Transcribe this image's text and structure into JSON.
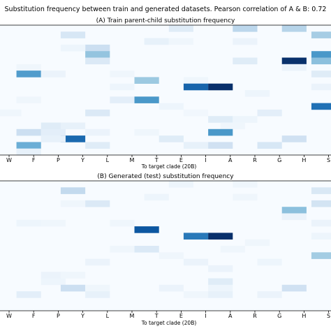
{
  "figure": {
    "suptitle": "Substitution frequency between train and generated datasets. Pearson correlation of A & B: 0.72"
  },
  "chart_data": [
    {
      "type": "heatmap",
      "title": "(A) Train parent-child substitution frequency",
      "xlabel": "To target clade (20B)",
      "x_ticks": [
        "W",
        "F",
        "P",
        "Y",
        "L",
        "M",
        "T",
        "E",
        "I",
        "A",
        "R",
        "G",
        "H",
        "S"
      ],
      "n_rows": 20,
      "n_cols": 13.3,
      "colormap": "Blues",
      "value_range": [
        0,
        1
      ],
      "cells": [
        {
          "r": 0,
          "c": 7,
          "v": 0.12
        },
        {
          "r": 0,
          "c": 9.6,
          "v": 0.28
        },
        {
          "r": 0,
          "c": 11.6,
          "v": 0.3
        },
        {
          "r": 1,
          "c": 2.6,
          "v": 0.16
        },
        {
          "r": 1,
          "c": 12.8,
          "v": 0.35
        },
        {
          "r": 2,
          "c": 6,
          "v": 0.08
        },
        {
          "r": 2,
          "c": 9.6,
          "v": 0.06
        },
        {
          "r": 2,
          "c": 7,
          "v": 0.04
        },
        {
          "r": 3,
          "c": 3.6,
          "v": 0.22
        },
        {
          "r": 3,
          "c": 2.6,
          "v": 0.05
        },
        {
          "r": 4,
          "c": 3.6,
          "v": 0.4
        },
        {
          "r": 4,
          "c": 12.8,
          "v": 0.6
        },
        {
          "r": 5,
          "c": 3.6,
          "v": 0.14
        },
        {
          "r": 5,
          "c": 9.6,
          "v": 0.12
        },
        {
          "r": 5,
          "c": 11.6,
          "v": 1.0
        },
        {
          "r": 5,
          "c": 12.8,
          "v": 0.42
        },
        {
          "r": 6,
          "c": 11.6,
          "v": 0.06
        },
        {
          "r": 6,
          "c": 0.8,
          "v": 0.04
        },
        {
          "r": 7,
          "c": 0.8,
          "v": 0.58
        },
        {
          "r": 7,
          "c": 1.8,
          "v": 0.06
        },
        {
          "r": 7,
          "c": 4.6,
          "v": 0.04
        },
        {
          "r": 7,
          "c": 12.8,
          "v": 0.12
        },
        {
          "r": 8,
          "c": 5.6,
          "v": 0.38
        },
        {
          "r": 8,
          "c": 7.6,
          "v": 0.04
        },
        {
          "r": 9,
          "c": 7.6,
          "v": 0.8
        },
        {
          "r": 9,
          "c": 8.6,
          "v": 1.0
        },
        {
          "r": 9,
          "c": 4.6,
          "v": 0.05
        },
        {
          "r": 9,
          "c": 12.8,
          "v": 0.06
        },
        {
          "r": 10,
          "c": 10.1,
          "v": 0.05
        },
        {
          "r": 11,
          "c": 5.6,
          "v": 0.6
        },
        {
          "r": 11,
          "c": 4.6,
          "v": 0.1
        },
        {
          "r": 11,
          "c": 0.8,
          "v": 0.04
        },
        {
          "r": 12,
          "c": 6.6,
          "v": 0.05
        },
        {
          "r": 12,
          "c": 12.8,
          "v": 0.75
        },
        {
          "r": 13,
          "c": 3.6,
          "v": 0.14
        },
        {
          "r": 13,
          "c": 0,
          "v": 0.04
        },
        {
          "r": 13,
          "c": 10.6,
          "v": 0.1
        },
        {
          "r": 13,
          "c": 7.6,
          "v": 0.03
        },
        {
          "r": 14,
          "c": 8.6,
          "v": 0.12
        },
        {
          "r": 14,
          "c": 9.6,
          "v": 0.05
        },
        {
          "r": 15,
          "c": 1.8,
          "v": 0.12
        },
        {
          "r": 15,
          "c": 2.6,
          "v": 0.08
        },
        {
          "r": 15,
          "c": 9.1,
          "v": 0.04
        },
        {
          "r": 16,
          "c": 0.8,
          "v": 0.22
        },
        {
          "r": 16,
          "c": 1.8,
          "v": 0.1
        },
        {
          "r": 16,
          "c": 3.6,
          "v": 0.06
        },
        {
          "r": 16,
          "c": 5.6,
          "v": 0.04
        },
        {
          "r": 16,
          "c": 8.6,
          "v": 0.6
        },
        {
          "r": 17,
          "c": 2.6,
          "v": 0.78
        },
        {
          "r": 17,
          "c": 1.8,
          "v": 0.08
        },
        {
          "r": 17,
          "c": 6.6,
          "v": 0.12
        },
        {
          "r": 17,
          "c": 11.6,
          "v": 0.2
        },
        {
          "r": 18,
          "c": 0.8,
          "v": 0.5
        },
        {
          "r": 18,
          "c": 3.6,
          "v": 0.12
        },
        {
          "r": 18,
          "c": 7.6,
          "v": 0.08
        },
        {
          "r": 18,
          "c": 8.6,
          "v": 0.2
        },
        {
          "r": 18,
          "c": 10.6,
          "v": 0.16
        },
        {
          "r": 19,
          "c": 0.8,
          "v": 0.08
        }
      ]
    },
    {
      "type": "heatmap",
      "title": "(B) Generated (test) substitution frequency",
      "xlabel": "To target clade (20B)",
      "x_ticks": [
        "W",
        "F",
        "P",
        "Y",
        "L",
        "M",
        "T",
        "E",
        "I",
        "A",
        "R",
        "G",
        "H",
        "S"
      ],
      "n_rows": 20,
      "n_cols": 13.3,
      "colormap": "Blues",
      "value_range": [
        0,
        1
      ],
      "cells": [
        {
          "r": 0,
          "c": 7,
          "v": 0.05
        },
        {
          "r": 0,
          "c": 9.6,
          "v": 0.04
        },
        {
          "r": 1,
          "c": 2.6,
          "v": 0.26
        },
        {
          "r": 1,
          "c": 12.8,
          "v": 0.15
        },
        {
          "r": 2,
          "c": 6,
          "v": 0.05
        },
        {
          "r": 2,
          "c": 9.6,
          "v": 0.04
        },
        {
          "r": 3,
          "c": 2.6,
          "v": 0.04
        },
        {
          "r": 3,
          "c": 3.6,
          "v": 0.14
        },
        {
          "r": 3,
          "c": 12.8,
          "v": 0.18
        },
        {
          "r": 4,
          "c": 11.6,
          "v": 0.42
        },
        {
          "r": 5,
          "c": 11.6,
          "v": 0.06
        },
        {
          "r": 6,
          "c": 0.8,
          "v": 0.05
        },
        {
          "r": 6,
          "c": 1.8,
          "v": 0.04
        },
        {
          "r": 6,
          "c": 4.6,
          "v": 0.04
        },
        {
          "r": 6,
          "c": 12.8,
          "v": 0.06
        },
        {
          "r": 7,
          "c": 5.6,
          "v": 0.85
        },
        {
          "r": 8,
          "c": 7.6,
          "v": 0.72
        },
        {
          "r": 8,
          "c": 8.6,
          "v": 1.0
        },
        {
          "r": 8,
          "c": 12.8,
          "v": 0.05
        },
        {
          "r": 9,
          "c": 10.1,
          "v": 0.04
        },
        {
          "r": 10,
          "c": 5.6,
          "v": 0.14
        },
        {
          "r": 10,
          "c": 4.6,
          "v": 0.04
        },
        {
          "r": 10,
          "c": 9.1,
          "v": 0.04
        },
        {
          "r": 11,
          "c": 6.6,
          "v": 0.04
        },
        {
          "r": 11,
          "c": 12.8,
          "v": 0.36
        },
        {
          "r": 12,
          "c": 3.6,
          "v": 0.06
        },
        {
          "r": 12,
          "c": 7.6,
          "v": 0.06
        },
        {
          "r": 12,
          "c": 10.6,
          "v": 0.05
        },
        {
          "r": 13,
          "c": 8.6,
          "v": 0.06
        },
        {
          "r": 14,
          "c": 1.8,
          "v": 0.06
        },
        {
          "r": 14,
          "c": 2.6,
          "v": 0.04
        },
        {
          "r": 15,
          "c": 1.8,
          "v": 0.05
        },
        {
          "r": 15,
          "c": 8.6,
          "v": 0.12
        },
        {
          "r": 16,
          "c": 2.6,
          "v": 0.22
        },
        {
          "r": 16,
          "c": 3.6,
          "v": 0.04
        },
        {
          "r": 16,
          "c": 6.6,
          "v": 0.06
        },
        {
          "r": 16,
          "c": 8.6,
          "v": 0.05
        },
        {
          "r": 16,
          "c": 11.6,
          "v": 0.2
        },
        {
          "r": 17,
          "c": 0.8,
          "v": 0.1
        },
        {
          "r": 17,
          "c": 3.6,
          "v": 0.08
        },
        {
          "r": 17,
          "c": 7.6,
          "v": 0.04
        },
        {
          "r": 17,
          "c": 8.6,
          "v": 0.08
        },
        {
          "r": 17,
          "c": 10.6,
          "v": 0.06
        }
      ]
    }
  ]
}
